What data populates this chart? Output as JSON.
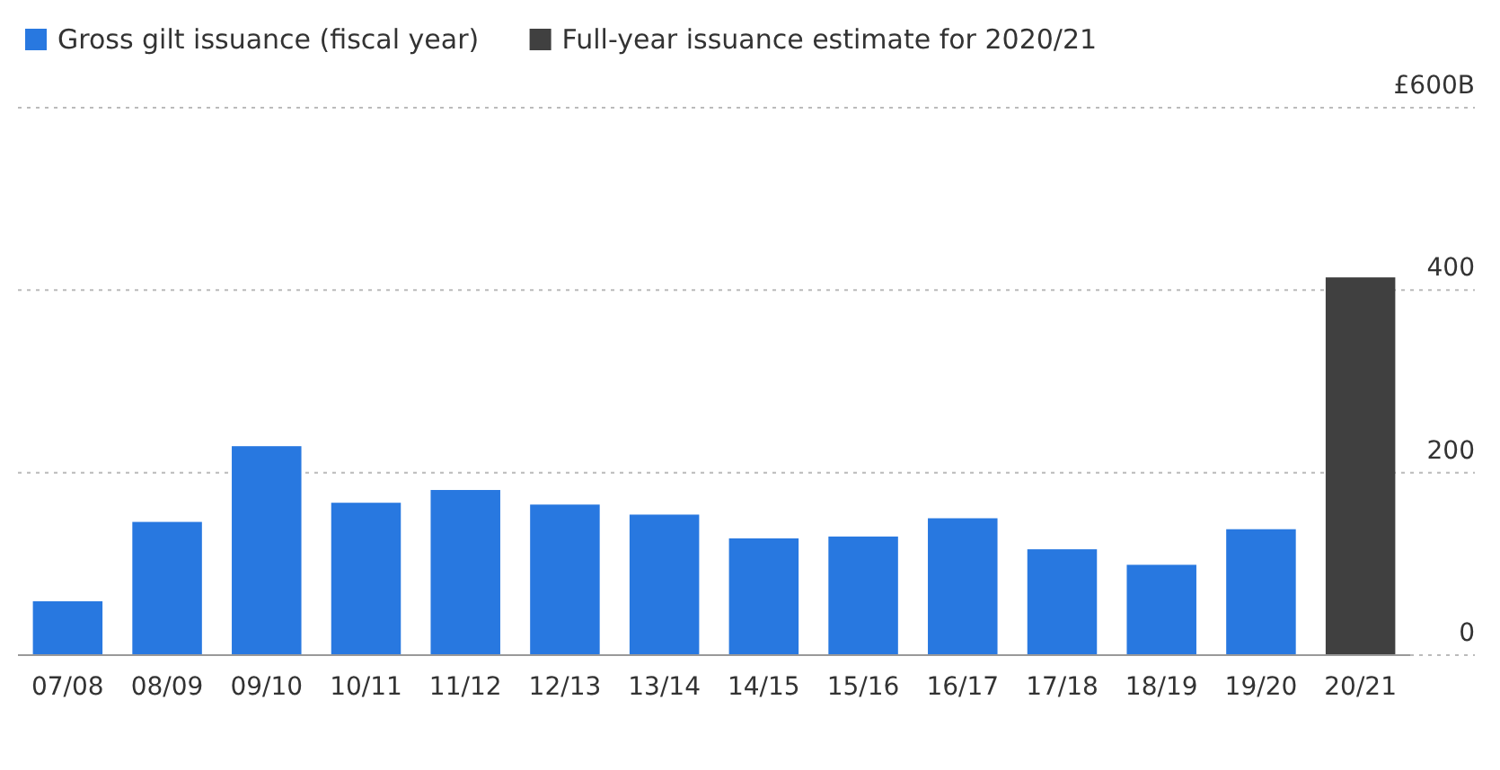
{
  "chart_data": {
    "type": "bar",
    "categories": [
      "07/08",
      "08/09",
      "09/10",
      "10/11",
      "11/12",
      "12/13",
      "13/14",
      "14/15",
      "15/16",
      "16/17",
      "17/18",
      "18/19",
      "19/20",
      "20/21"
    ],
    "series": [
      {
        "name": "Gross gilt issuance (fiscal year)",
        "color": "#2878e0",
        "values": [
          59,
          146,
          229,
          167,
          181,
          165,
          154,
          128,
          130,
          150,
          116,
          99,
          138,
          null
        ]
      },
      {
        "name": "Full-year issuance estimate for 2020/21",
        "color": "#404040",
        "values": [
          null,
          null,
          null,
          null,
          null,
          null,
          null,
          null,
          null,
          null,
          null,
          null,
          null,
          414
        ]
      }
    ],
    "ylim": [
      0,
      600
    ],
    "yticks": [
      0,
      200,
      400,
      {
        "value": 600,
        "label": "£600B"
      }
    ],
    "grid": "y",
    "legend": "top left"
  }
}
